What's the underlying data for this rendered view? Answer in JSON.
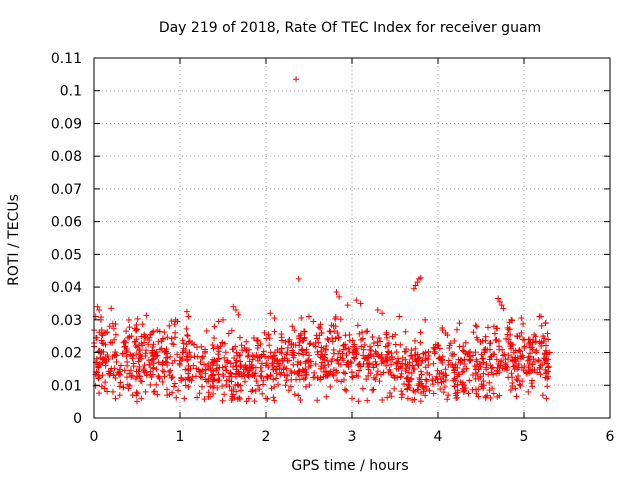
{
  "chart_data": {
    "type": "scatter",
    "title": "Day 219 of 2018, Rate Of TEC Index for receiver guam",
    "xlabel": "GPS time / hours",
    "ylabel": "ROTI / TECUs",
    "xlim": [
      0,
      6
    ],
    "ylim": [
      0,
      0.11
    ],
    "x_ticks": [
      "0",
      "1",
      "2",
      "3",
      "4",
      "5",
      "6"
    ],
    "y_ticks": [
      "0",
      "0.01",
      "0.02",
      "0.03",
      "0.04",
      "0.05",
      "0.06",
      "0.07",
      "0.08",
      "0.09",
      "0.1",
      "0.11"
    ],
    "grid": true,
    "marker": "plus",
    "color": "#ff0000",
    "series": [
      {
        "points": [
          [
            2.35,
            0.1035
          ],
          [
            2.38,
            0.0425
          ],
          [
            3.72,
            0.0395
          ],
          [
            3.74,
            0.0405
          ],
          [
            3.76,
            0.0415
          ],
          [
            3.78,
            0.0425
          ],
          [
            3.8,
            0.0428
          ],
          [
            4.7,
            0.0365
          ],
          [
            4.72,
            0.0355
          ],
          [
            4.74,
            0.0345
          ],
          [
            4.76,
            0.0335
          ],
          [
            2.82,
            0.0385
          ],
          [
            2.85,
            0.037
          ],
          [
            3.05,
            0.036
          ],
          [
            3.1,
            0.035
          ],
          [
            2.95,
            0.0345
          ],
          [
            0.04,
            0.034
          ],
          [
            0.06,
            0.033
          ],
          [
            0.02,
            0.031
          ],
          [
            0.08,
            0.03
          ],
          [
            0.2,
            0.0335
          ],
          [
            1.62,
            0.034
          ],
          [
            1.65,
            0.033
          ],
          [
            1.68,
            0.0315
          ],
          [
            1.08,
            0.0325
          ],
          [
            1.1,
            0.031
          ],
          [
            0.95,
            0.03
          ],
          [
            0.97,
            0.0295
          ],
          [
            1.4,
            0.028
          ],
          [
            1.45,
            0.0295
          ],
          [
            1.5,
            0.03
          ],
          [
            2.05,
            0.032
          ],
          [
            2.1,
            0.0305
          ],
          [
            2.5,
            0.031
          ],
          [
            2.55,
            0.0295
          ],
          [
            3.3,
            0.033
          ],
          [
            3.35,
            0.032
          ],
          [
            3.55,
            0.031
          ],
          [
            3.85,
            0.03
          ],
          [
            4.05,
            0.0275
          ],
          [
            4.25,
            0.029
          ],
          [
            4.45,
            0.028
          ],
          [
            4.65,
            0.028
          ],
          [
            4.85,
            0.03
          ],
          [
            4.95,
            0.025
          ],
          [
            5.25,
            0.029
          ],
          [
            5.28,
            0.024
          ],
          [
            5.2,
            0.022
          ],
          [
            5.3,
            0.02
          ],
          [
            5.27,
            0.012
          ],
          [
            5.26,
            0.006
          ],
          [
            0.5,
            0.005
          ],
          [
            0.55,
            0.006
          ],
          [
            0.45,
            0.007
          ],
          [
            0.6,
            0.008
          ],
          [
            0.3,
            0.007
          ],
          [
            0.25,
            0.006
          ],
          [
            0.22,
            0.008
          ],
          [
            0.85,
            0.007
          ],
          [
            1.05,
            0.006
          ],
          [
            1.35,
            0.0065
          ],
          [
            1.6,
            0.0055
          ],
          [
            1.8,
            0.006
          ],
          [
            2.0,
            0.006
          ],
          [
            2.4,
            0.0055
          ],
          [
            2.7,
            0.0065
          ],
          [
            3.0,
            0.006
          ],
          [
            3.35,
            0.0055
          ],
          [
            3.65,
            0.006
          ],
          [
            3.7,
            0.0055
          ],
          [
            3.95,
            0.0075
          ],
          [
            4.3,
            0.008
          ],
          [
            4.6,
            0.0085
          ],
          [
            4.9,
            0.009
          ],
          [
            5.05,
            0.008
          ],
          [
            5.22,
            0.007
          ]
        ],
        "bulk": {
          "x_range": [
            0.0,
            5.3
          ],
          "y_band": [
            0.005,
            0.032
          ],
          "center": 0.017,
          "count": 1400
        }
      }
    ]
  }
}
